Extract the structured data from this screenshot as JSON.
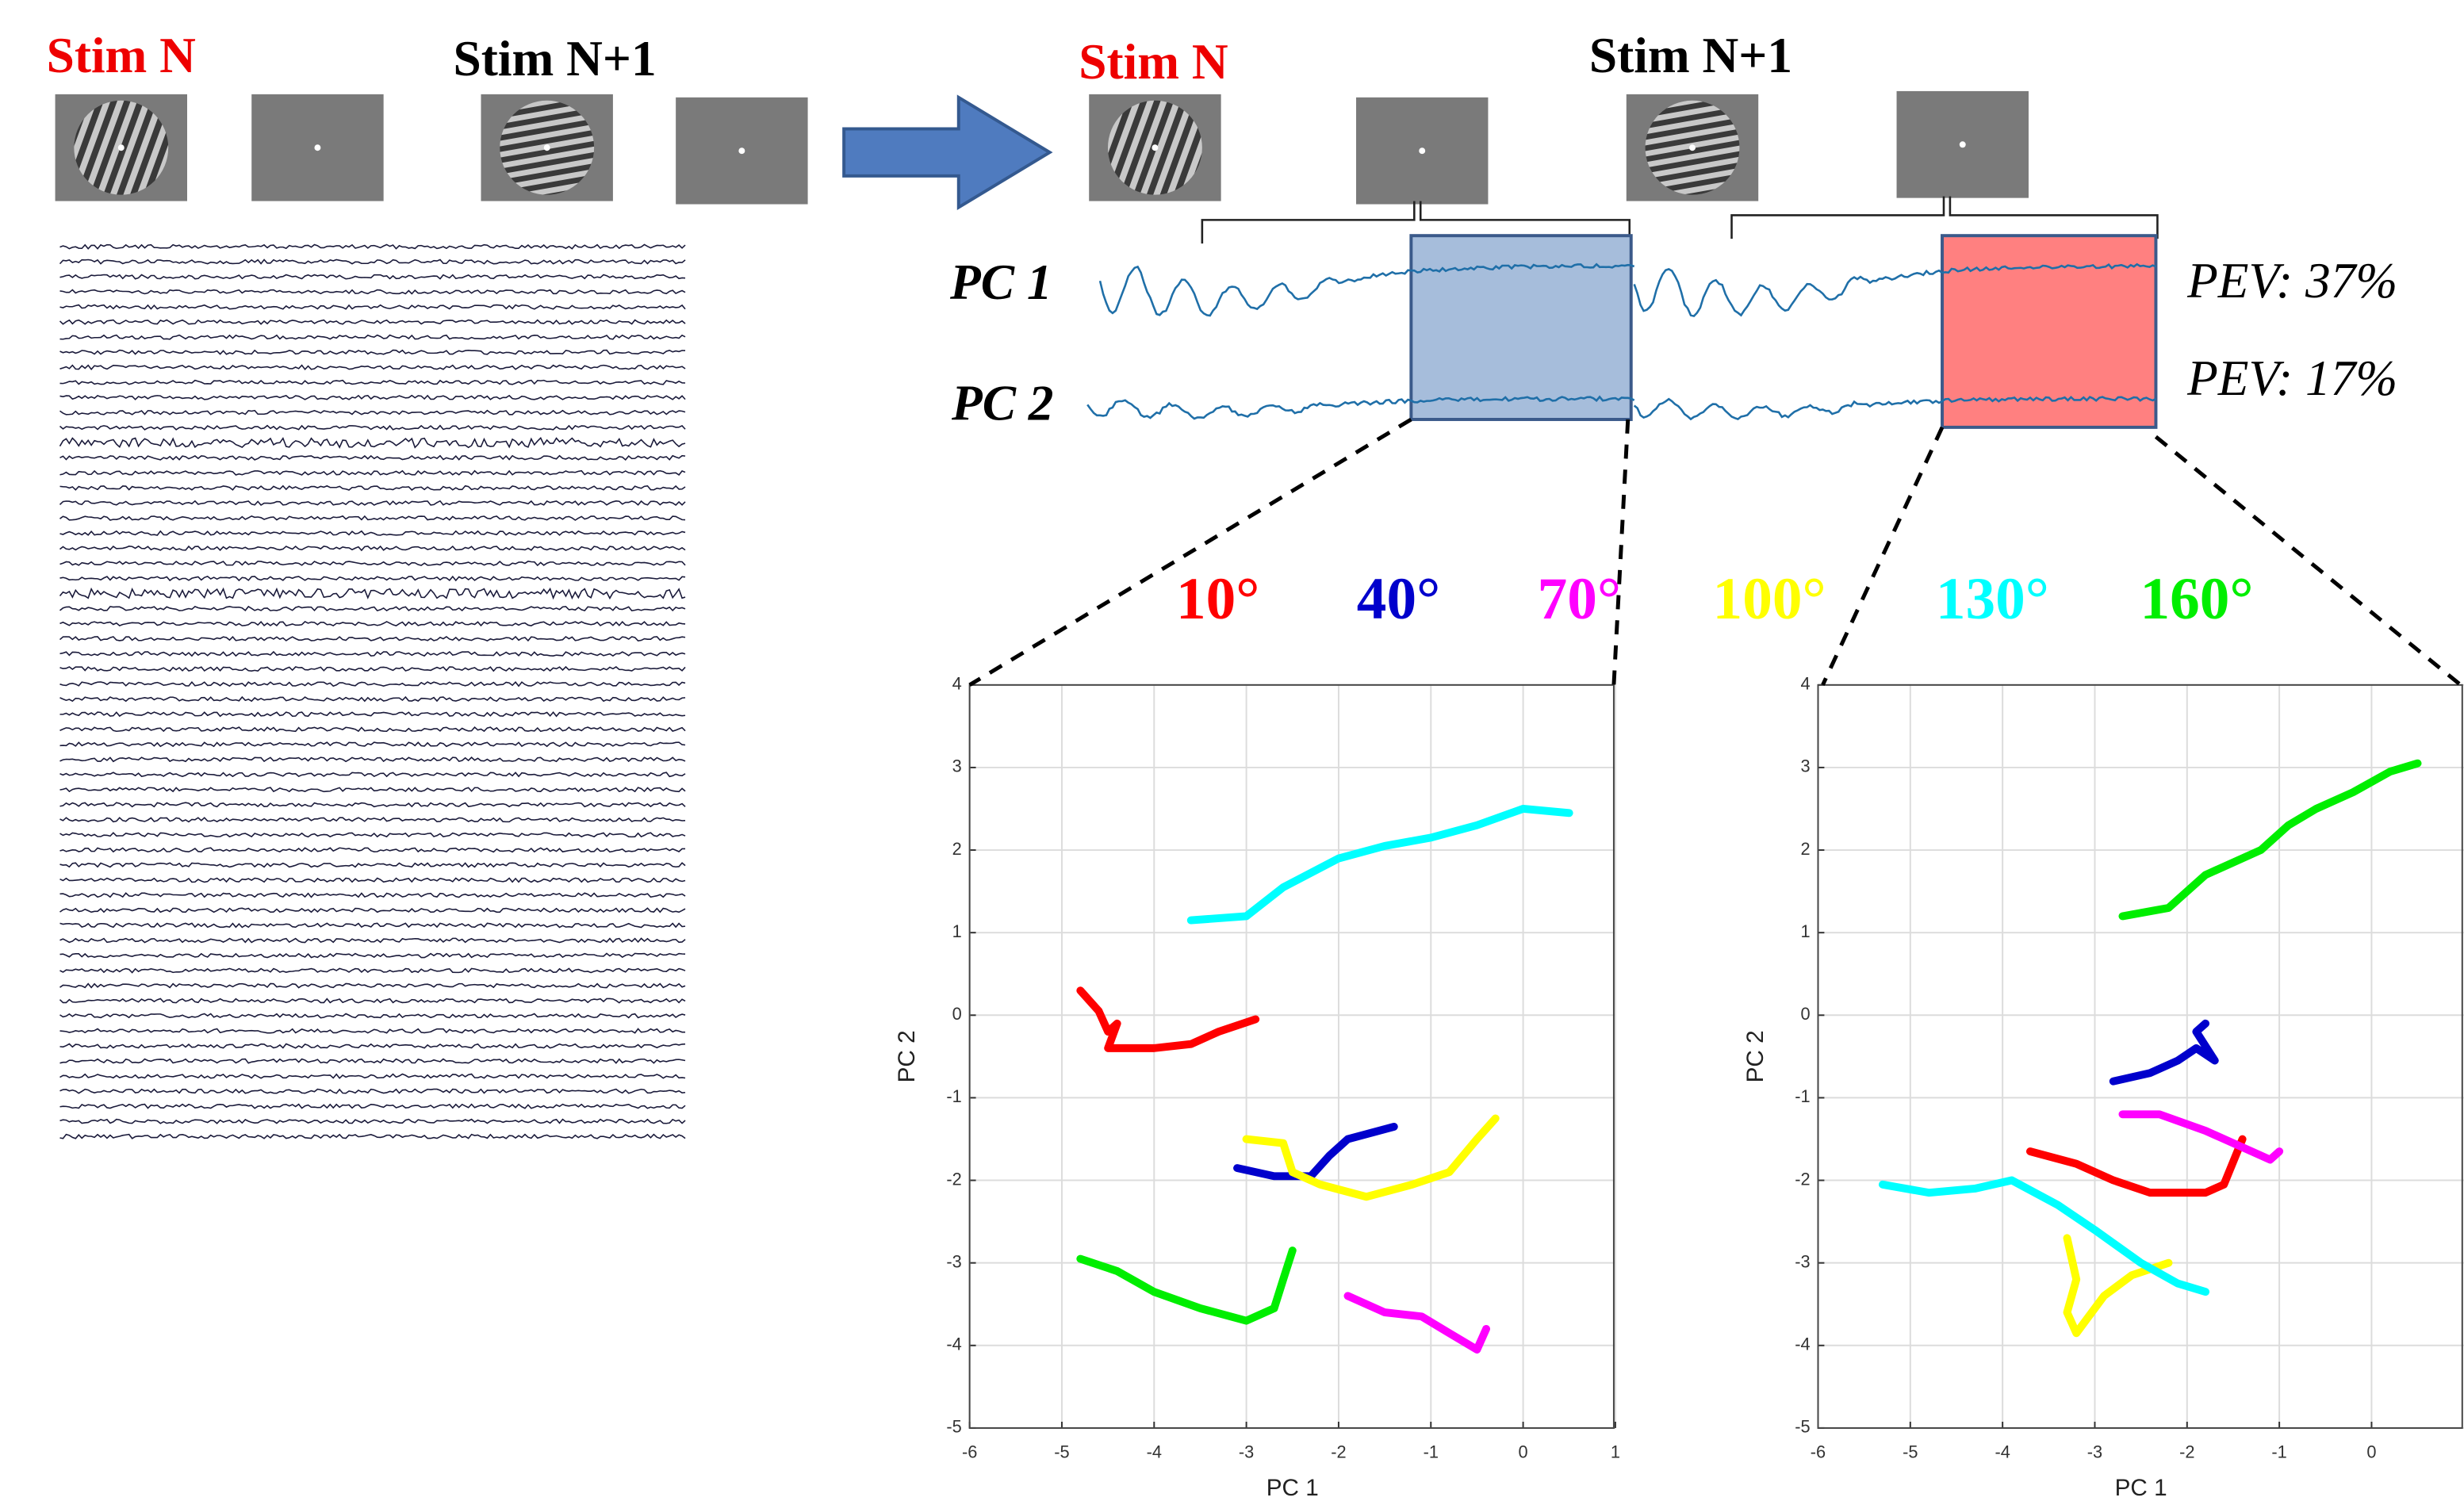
{
  "stimuli": {
    "stim_n": "Stim N",
    "stim_n1": "Stim N+1"
  },
  "components": {
    "pc1": "PC 1",
    "pc2": "PC 2",
    "pev1": "PEV: 37%",
    "pev2": "PEV: 17%"
  },
  "chart_data": [
    {
      "type": "line",
      "xlabel": "PC 1",
      "ylabel": "PC 2",
      "xlim": [
        -6,
        1
      ],
      "ylim": [
        -5,
        4
      ],
      "xticks": [
        -6,
        -5,
        -4,
        -3,
        -2,
        -1,
        0,
        1
      ],
      "yticks": [
        -5,
        -4,
        -3,
        -2,
        -1,
        0,
        1,
        2,
        3,
        4
      ],
      "grid": true,
      "series": [
        {
          "name": "10°",
          "color": "#ff0000",
          "x": [
            -4.8,
            -4.6,
            -4.5,
            -4.4,
            -4.5,
            -4,
            -3.6,
            -3.3,
            -2.9
          ],
          "values": [
            0.3,
            0.05,
            -0.2,
            -0.1,
            -0.4,
            -0.4,
            -0.35,
            -0.2,
            -0.05
          ]
        },
        {
          "name": "40°",
          "color": "#0000cc",
          "x": [
            -3.1,
            -2.7,
            -2.3,
            -2.1,
            -1.9,
            -1.4
          ],
          "values": [
            -1.85,
            -1.95,
            -1.95,
            -1.7,
            -1.5,
            -1.35
          ]
        },
        {
          "name": "70°",
          "color": "#ff00ff",
          "x": [
            -1.9,
            -1.5,
            -1.1,
            -0.8,
            -0.5,
            -0.4
          ],
          "values": [
            -3.4,
            -3.6,
            -3.65,
            -3.85,
            -4.05,
            -3.8
          ]
        },
        {
          "name": "100°",
          "color": "#ffff00",
          "x": [
            -3,
            -2.6,
            -2.5,
            -2.2,
            -1.7,
            -1.2,
            -0.8,
            -0.5,
            -0.3
          ],
          "values": [
            -1.5,
            -1.55,
            -1.9,
            -2.05,
            -2.2,
            -2.05,
            -1.9,
            -1.5,
            -1.25
          ]
        },
        {
          "name": "130°",
          "color": "#00ffff",
          "x": [
            -3.6,
            -3,
            -2.6,
            -2,
            -1.5,
            -1,
            -0.5,
            0,
            0.5
          ],
          "values": [
            1.15,
            1.2,
            1.55,
            1.9,
            2.05,
            2.15,
            2.3,
            2.5,
            2.45
          ]
        },
        {
          "name": "160°",
          "color": "#00ee00",
          "x": [
            -4.8,
            -4.4,
            -4,
            -3.5,
            -3,
            -2.7,
            -2.6,
            -2.5
          ],
          "values": [
            -2.95,
            -3.1,
            -3.35,
            -3.55,
            -3.7,
            -3.55,
            -3.2,
            -2.85
          ]
        }
      ]
    },
    {
      "type": "line",
      "xlabel": "PC 1",
      "ylabel": "PC 2",
      "xlim": [
        -6,
        1
      ],
      "ylim": [
        -5,
        4
      ],
      "xticks": [
        -6,
        -5,
        -4,
        -3,
        -2,
        -1,
        0
      ],
      "yticks": [
        -5,
        -4,
        -3,
        -2,
        -1,
        0,
        1,
        2,
        3,
        4
      ],
      "grid": true,
      "series": [
        {
          "name": "10°",
          "color": "#ff0000",
          "x": [
            -3.7,
            -3.2,
            -2.8,
            -2.4,
            -1.8,
            -1.6,
            -1.4
          ],
          "values": [
            -1.65,
            -1.8,
            -2.0,
            -2.15,
            -2.15,
            -2.05,
            -1.5
          ]
        },
        {
          "name": "40°",
          "color": "#0000cc",
          "x": [
            -2.8,
            -2.4,
            -2.1,
            -1.9,
            -1.7,
            -1.9,
            -1.8
          ],
          "values": [
            -0.8,
            -0.7,
            -0.55,
            -0.4,
            -0.55,
            -0.2,
            -0.1
          ]
        },
        {
          "name": "70°",
          "color": "#ff00ff",
          "x": [
            -2.7,
            -2.3,
            -1.8,
            -1.4,
            -1.1,
            -1
          ],
          "values": [
            -1.2,
            -1.2,
            -1.4,
            -1.6,
            -1.75,
            -1.65
          ]
        },
        {
          "name": "100°",
          "color": "#ffff00",
          "x": [
            -3.3,
            -3.2,
            -3.3,
            -3.2,
            -2.9,
            -2.6,
            -2.2
          ],
          "values": [
            -2.7,
            -3.2,
            -3.6,
            -3.85,
            -3.4,
            -3.15,
            -3.0
          ]
        },
        {
          "name": "130°",
          "color": "#00ffff",
          "x": [
            -5.3,
            -4.8,
            -4.3,
            -3.9,
            -3.4,
            -3,
            -2.5,
            -2.1,
            -1.8
          ],
          "values": [
            -2.05,
            -2.15,
            -2.1,
            -2.0,
            -2.3,
            -2.6,
            -3.0,
            -3.25,
            -3.35
          ]
        },
        {
          "name": "160°",
          "color": "#00ee00",
          "x": [
            -2.7,
            -2.2,
            -1.8,
            -1.2,
            -0.9,
            -0.6,
            -0.2,
            0.2,
            0.5
          ],
          "values": [
            1.2,
            1.3,
            1.7,
            2.0,
            2.3,
            2.5,
            2.7,
            2.95,
            3.05
          ]
        }
      ]
    }
  ]
}
